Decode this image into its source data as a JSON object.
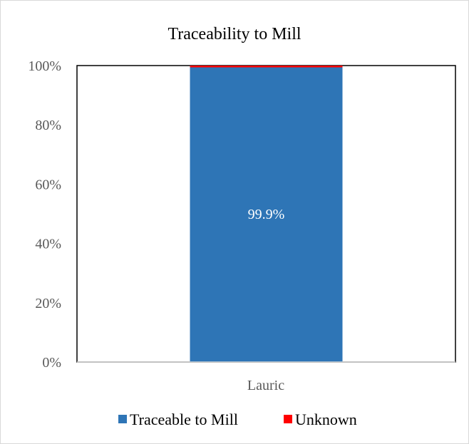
{
  "chart_data": {
    "type": "bar",
    "stacked": true,
    "title": "Traceability to Mill",
    "categories": [
      "Lauric"
    ],
    "series": [
      {
        "name": "Traceable to Mill",
        "values": [
          99.9
        ],
        "color": "#2e75b6",
        "label": "99.9%"
      },
      {
        "name": "Unknown",
        "values": [
          0.1
        ],
        "color": "#ff0000"
      }
    ],
    "ylim": [
      0,
      100
    ],
    "yticks": [
      "0%",
      "20%",
      "40%",
      "60%",
      "80%",
      "100%"
    ],
    "legend_position": "bottom",
    "grid": false
  }
}
